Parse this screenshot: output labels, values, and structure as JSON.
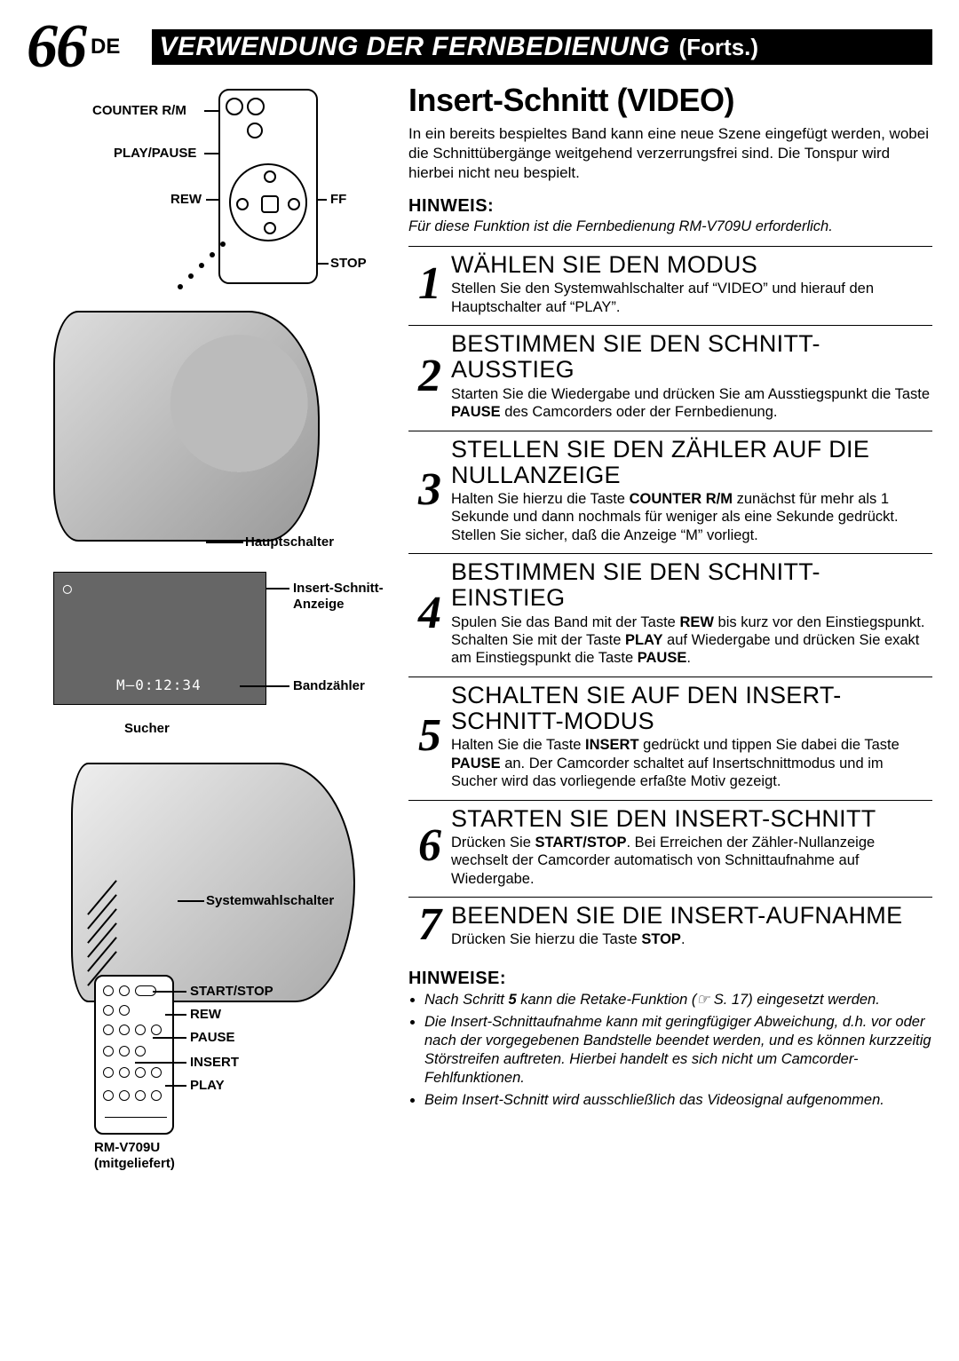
{
  "page": {
    "number": "66",
    "number_suffix": "DE",
    "header_title": "VERWENDUNG DER FERNBEDIENUNG",
    "header_suffix": "(Forts.)"
  },
  "diagram_top": {
    "counter_rm": "COUNTER R/M",
    "play_pause": "PLAY/PAUSE",
    "rew": "REW",
    "ff": "FF",
    "stop": "STOP",
    "hauptschalter": "Hauptschalter"
  },
  "sucher": {
    "insert_anzeige": "Insert-Schnitt-\nAnzeige",
    "bandzaehler": "Bandzähler",
    "sucher_label": "Sucher",
    "counter_value": "M–0:12:34",
    "icon": "◯"
  },
  "diagram_bottom": {
    "systemwahlschalter": "Systemwahlschalter",
    "start_stop": "START/STOP",
    "rew": "REW",
    "pause": "PAUSE",
    "insert": "INSERT",
    "play": "PLAY",
    "remote_model": "RM-V709U\n(mitgeliefert)"
  },
  "section": {
    "title": "Insert-Schnitt (VIDEO)",
    "intro": "In ein bereits bespieltes Band kann eine neue Szene eingefügt werden, wobei die Schnittübergänge weitgehend verzerrungsfrei sind.  Die Tonspur wird hierbei nicht neu bespielt.",
    "hinweis_label": "HINWEIS:",
    "hinweis_text": "Für diese Funktion ist die Fernbedienung RM-V709U  erforderlich."
  },
  "steps": [
    {
      "n": "1",
      "title": "WÄHLEN SIE DEN MODUS",
      "text": "Stellen Sie den Systemwahlschalter auf “VIDEO” und hierauf den Hauptschalter auf “PLAY”."
    },
    {
      "n": "2",
      "title": "BESTIMMEN SIE DEN SCHNITT-AUSSTIEG",
      "text": "Starten Sie die Wiedergabe und drücken Sie am Ausstiegspunkt die Taste <b>PAUSE</b> des Camcorders oder der Fernbedienung."
    },
    {
      "n": "3",
      "title": "STELLEN SIE DEN ZÄHLER AUF DIE NULLANZEIGE",
      "text": "Halten Sie hierzu die Taste <b>COUNTER R/M</b> zunächst für mehr als 1 Sekunde und dann nochmals für weniger als eine Sekunde gedrückt.  Stellen Sie sicher, daß die Anzeige “M” vorliegt."
    },
    {
      "n": "4",
      "title": "BESTIMMEN SIE DEN SCHNITT-EINSTIEG",
      "text": "Spulen Sie das Band mit der Taste <b>REW</b> bis kurz vor den Einstiegspunkt.  Schalten Sie mit der Taste <b>PLAY</b> auf Wiedergabe und drücken Sie exakt am Einstiegspunkt die Taste <b>PAUSE</b>."
    },
    {
      "n": "5",
      "title": "SCHALTEN SIE AUF DEN INSERT-SCHNITT-MODUS",
      "text": "Halten Sie die Taste <b>INSERT</b> gedrückt und tippen Sie dabei die Taste <b>PAUSE</b> an. Der Camcorder schaltet auf Insertschnittmodus und im Sucher wird das vorliegende erfaßte Motiv gezeigt."
    },
    {
      "n": "6",
      "title": "STARTEN SIE DEN INSERT-SCHNITT",
      "text": "Drücken Sie <b>START/STOP</b>.  Bei Erreichen der Zähler-Nullanzeige wechselt der Camcorder automatisch von Schnittaufnahme auf Wiedergabe."
    },
    {
      "n": "7",
      "title": "BEENDEN SIE DIE INSERT-AUFNAHME",
      "text": "Drücken Sie hierzu die Taste <b>STOP</b>."
    }
  ],
  "hinweise": {
    "label": "HINWEISE:",
    "items": [
      "Nach Schritt <b>5</b> kann die Retake-Funktion (☞ S. 17) eingesetzt werden.",
      "Die Insert-Schnittaufnahme kann mit geringfügiger Abweichung, d.h. vor oder nach der vorgegebenen Bandstelle beendet werden, und es können kurzzeitig Störstreifen auftreten.  Hierbei handelt es sich nicht um Camcorder-Fehlfunktionen.",
      "Beim Insert-Schnitt wird ausschließlich das Videosignal aufgenommen."
    ]
  }
}
